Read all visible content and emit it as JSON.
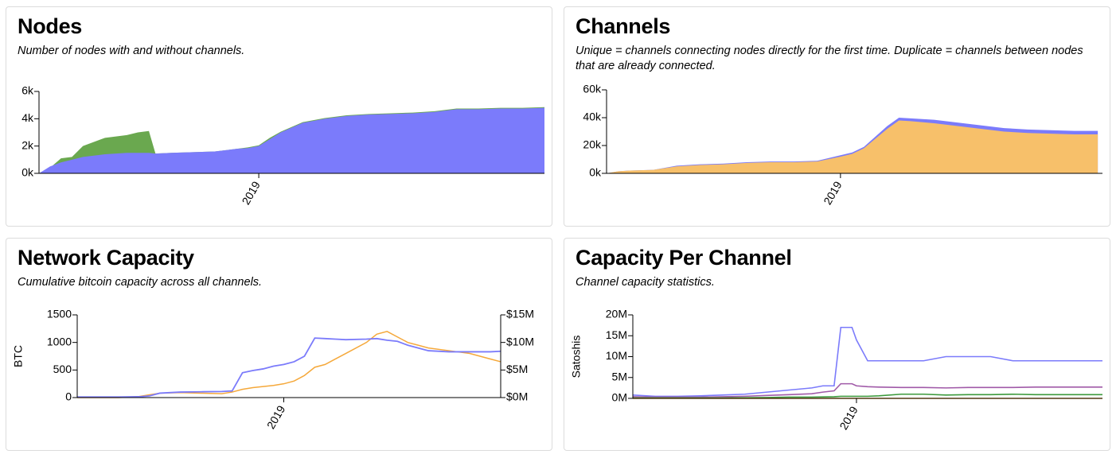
{
  "cards": {
    "nodes": {
      "title": "Nodes",
      "subtitle": "Number of nodes with and without channels."
    },
    "channels": {
      "title": "Channels",
      "subtitle": "Unique = channels connecting nodes directly for the first time. Duplicate = channels between nodes that are already connected."
    },
    "capacity": {
      "title": "Network Capacity",
      "subtitle": "Cumulative bitcoin capacity across all channels."
    },
    "per_channel": {
      "title": "Capacity Per Channel",
      "subtitle": "Channel capacity statistics."
    }
  },
  "colors": {
    "blue": "#7b7bfb",
    "green": "#6aa84f",
    "orange": "#f7c06a",
    "orange_line": "#f5a83a",
    "purple": "#a05aa8",
    "green_line": "#3c9a3c",
    "axis": "#000000"
  },
  "chart_data": [
    {
      "id": "nodes",
      "type": "area",
      "x": [
        2018.0,
        2018.05,
        2018.1,
        2018.15,
        2018.2,
        2018.3,
        2018.4,
        2018.45,
        2018.5,
        2018.53,
        2018.6,
        2018.7,
        2018.8,
        2018.85,
        2018.9,
        2018.95,
        2019.0,
        2019.05,
        2019.1,
        2019.2,
        2019.3,
        2019.4,
        2019.5,
        2019.6,
        2019.7,
        2019.8,
        2019.9,
        2020.0,
        2020.1,
        2020.2,
        2020.3
      ],
      "series": [
        {
          "values": [
            0,
            500,
            800,
            1000,
            1200,
            1400,
            1500,
            1500,
            1500,
            1450,
            1500,
            1550,
            1600,
            1700,
            1800,
            1850,
            2000,
            2500,
            3000,
            3700,
            4000,
            4200,
            4300,
            4350,
            4400,
            4500,
            4700,
            4700,
            4750,
            4750,
            4800
          ]
        },
        {
          "values": [
            0,
            400,
            1100,
            1200,
            2000,
            2600,
            2800,
            3000,
            3100,
            1450,
            1500,
            1550,
            1600,
            1700,
            1800,
            1900,
            2050,
            2600,
            3050,
            3750,
            4050,
            4250,
            4350,
            4400,
            4450,
            4550,
            4750,
            4750,
            4800,
            4800,
            4850
          ]
        }
      ],
      "ylim": [
        0,
        6000
      ],
      "yticks": [
        "0k",
        "2k",
        "4k",
        "6k"
      ],
      "ytick_values": [
        0,
        2000,
        4000,
        6000
      ],
      "xtick_labels": [
        "2019"
      ],
      "xtick_values": [
        2019.0
      ]
    },
    {
      "id": "channels",
      "type": "area",
      "x": [
        2018.0,
        2018.05,
        2018.1,
        2018.2,
        2018.3,
        2018.4,
        2018.5,
        2018.6,
        2018.7,
        2018.8,
        2018.9,
        2019.0,
        2019.05,
        2019.1,
        2019.15,
        2019.2,
        2019.25,
        2019.3,
        2019.4,
        2019.5,
        2019.6,
        2019.7,
        2019.8,
        2019.9,
        2020.0,
        2020.1
      ],
      "series": [
        {
          "values": [
            0,
            1500,
            2000,
            2500,
            5000,
            6000,
            6500,
            7500,
            8000,
            8000,
            8500,
            12000,
            14000,
            18000,
            25000,
            32000,
            38000,
            37500,
            36000,
            34000,
            32000,
            30000,
            29000,
            28500,
            28000,
            28000
          ]
        },
        {
          "values": [
            0,
            1500,
            2000,
            2500,
            5500,
            6500,
            7000,
            8000,
            8500,
            8500,
            9000,
            13000,
            15000,
            19000,
            26500,
            34000,
            40000,
            39500,
            38500,
            36500,
            34500,
            32500,
            31500,
            31000,
            30500,
            30500
          ]
        }
      ],
      "ylim": [
        0,
        60000
      ],
      "yticks": [
        "0k",
        "20k",
        "40k",
        "60k"
      ],
      "ytick_values": [
        0,
        20000,
        40000,
        60000
      ],
      "xtick_labels": [
        "2019"
      ],
      "xtick_values": [
        2019.0
      ]
    },
    {
      "id": "capacity",
      "type": "line",
      "ylabel": "BTC",
      "x": [
        2018.0,
        2018.1,
        2018.2,
        2018.3,
        2018.35,
        2018.4,
        2018.5,
        2018.6,
        2018.7,
        2018.75,
        2018.8,
        2018.85,
        2018.9,
        2018.95,
        2019.0,
        2019.05,
        2019.1,
        2019.15,
        2019.2,
        2019.25,
        2019.3,
        2019.4,
        2019.45,
        2019.5,
        2019.55,
        2019.6,
        2019.65,
        2019.7,
        2019.8,
        2019.9,
        2020.0,
        2020.05
      ],
      "series": [
        {
          "values": [
            10,
            10,
            10,
            15,
            30,
            80,
            100,
            105,
            110,
            120,
            450,
            490,
            520,
            570,
            600,
            650,
            750,
            1080,
            1070,
            1060,
            1050,
            1060,
            1070,
            1040,
            1020,
            950,
            900,
            850,
            830,
            830,
            830,
            840
          ]
        },
        {
          "values": [
            0,
            0,
            0,
            0.2,
            0.5,
            0.8,
            0.9,
            0.8,
            0.7,
            1.0,
            1.5,
            1.8,
            2.0,
            2.2,
            2.5,
            3.0,
            4.0,
            5.5,
            6.0,
            7.0,
            8.0,
            10.0,
            11.5,
            12.0,
            11.0,
            10.0,
            9.5,
            9.0,
            8.5,
            8.0,
            7.0,
            6.5
          ]
        }
      ],
      "ylim": [
        0,
        1500
      ],
      "yticks": [
        "0",
        "500",
        "1000",
        "1500"
      ],
      "ytick_values": [
        0,
        500,
        1000,
        1500
      ],
      "y2lim": [
        0,
        15
      ],
      "y2ticks": [
        "$0M",
        "$5M",
        "$10M",
        "$15M"
      ],
      "y2tick_values": [
        0,
        5,
        10,
        15
      ],
      "xtick_labels": [
        "2019"
      ],
      "xtick_values": [
        2019.0
      ]
    },
    {
      "id": "per_channel",
      "type": "line",
      "ylabel": "Satoshis",
      "x": [
        2018.0,
        2018.1,
        2018.2,
        2018.3,
        2018.4,
        2018.5,
        2018.6,
        2018.7,
        2018.8,
        2018.85,
        2018.9,
        2018.93,
        2018.98,
        2019.0,
        2019.05,
        2019.1,
        2019.2,
        2019.3,
        2019.4,
        2019.5,
        2019.6,
        2019.7,
        2019.8,
        2019.9,
        2020.0,
        2020.1
      ],
      "series": [
        {
          "values": [
            0.8,
            0.5,
            0.5,
            0.6,
            0.8,
            1.0,
            1.5,
            2.0,
            2.5,
            3.0,
            3.0,
            17.0,
            17.0,
            14.0,
            9.0,
            9.0,
            9.0,
            9.0,
            10.0,
            10.0,
            10.0,
            9.0,
            9.0,
            9.0,
            9.0,
            9.0
          ]
        },
        {
          "values": [
            0.4,
            0.3,
            0.3,
            0.3,
            0.4,
            0.5,
            0.7,
            0.9,
            1.1,
            1.5,
            1.8,
            3.5,
            3.5,
            3.0,
            2.8,
            2.7,
            2.6,
            2.6,
            2.5,
            2.6,
            2.6,
            2.6,
            2.7,
            2.7,
            2.7,
            2.7
          ]
        },
        {
          "values": [
            0.1,
            0.1,
            0.1,
            0.1,
            0.1,
            0.15,
            0.2,
            0.3,
            0.3,
            0.35,
            0.4,
            0.5,
            0.5,
            0.5,
            0.5,
            0.6,
            1.0,
            1.0,
            0.8,
            0.9,
            0.9,
            1.0,
            0.9,
            0.9,
            0.9,
            0.9
          ]
        },
        {
          "values": [
            0,
            0,
            0,
            0,
            0,
            0,
            0,
            0,
            0,
            0,
            0,
            0,
            0,
            0,
            0,
            0,
            0,
            0,
            0,
            0,
            0,
            0,
            0,
            0,
            0,
            0
          ]
        }
      ],
      "ylim": [
        0,
        20
      ],
      "yticks": [
        "0M",
        "5M",
        "10M",
        "15M",
        "20M"
      ],
      "ytick_values": [
        0,
        5,
        10,
        15,
        20
      ],
      "xtick_labels": [
        "2019"
      ],
      "xtick_values": [
        2019.0
      ]
    }
  ]
}
